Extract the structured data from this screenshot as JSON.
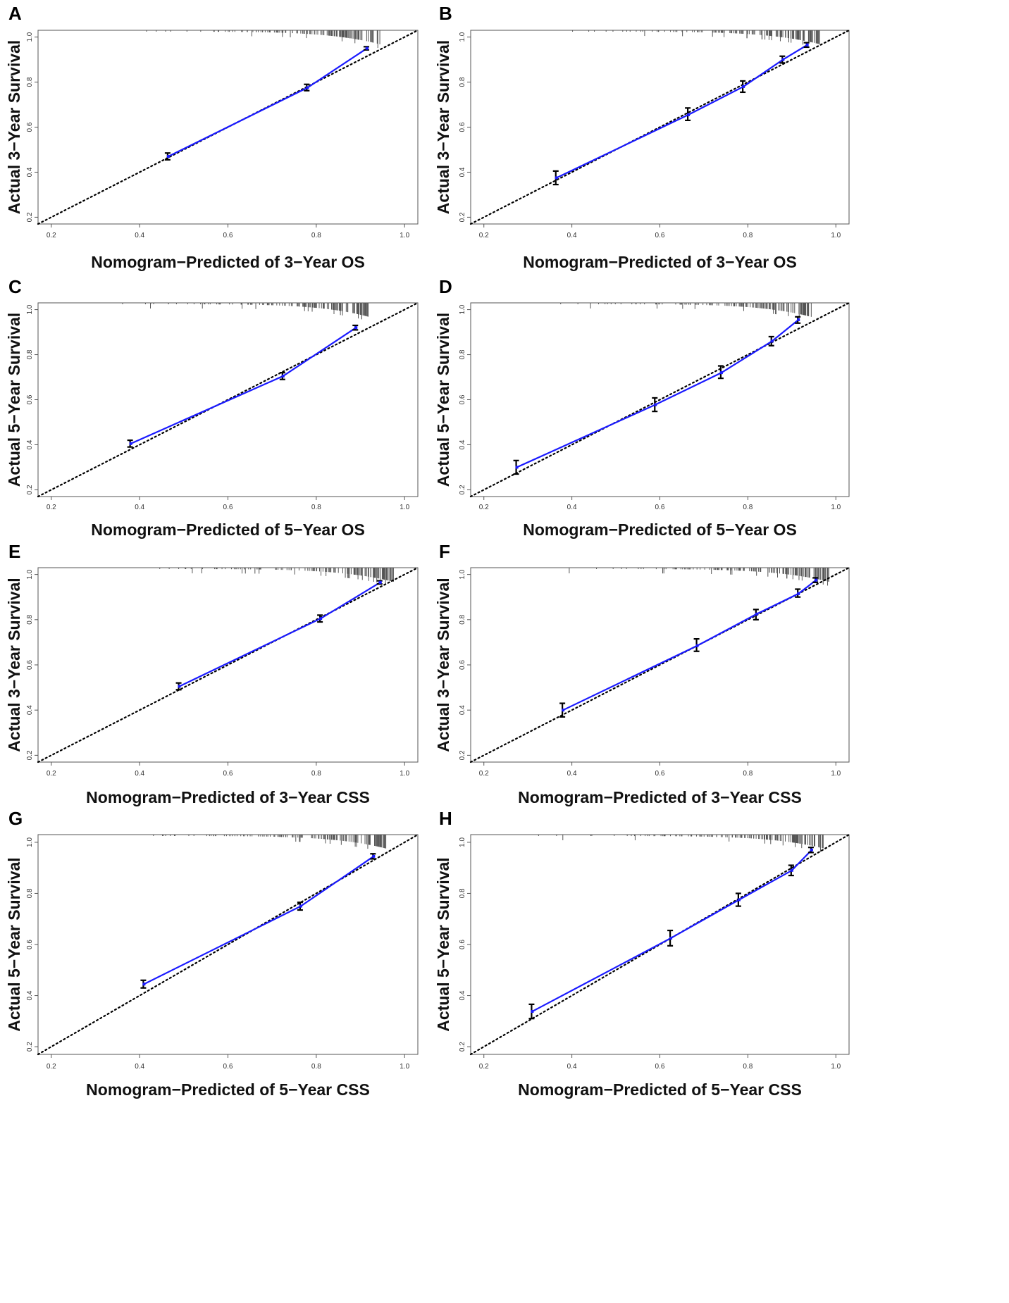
{
  "figure": {
    "panels_order": [
      "A",
      "B",
      "C",
      "D",
      "E",
      "F",
      "G",
      "H"
    ]
  },
  "colors": {
    "calibration_line": "#1a1aff",
    "calibration_point": "#1a1aff",
    "error_bar": "#000000",
    "ideal_line": "#000000",
    "rug": "#555555",
    "frame": "#555555"
  },
  "chart_data": [
    {
      "letter": "A",
      "type": "line",
      "xlabel": "Nomogram−Predicted of 3−Year OS",
      "ylabel": "Actual 3−Year Survival",
      "xlim": [
        0.17,
        1.03
      ],
      "ylim": [
        0.17,
        1.03
      ],
      "xticks": [
        "0.2",
        "0.4",
        "0.6",
        "0.8",
        "1.0"
      ],
      "yticks": [
        "0.2",
        "0.4",
        "0.6",
        "0.8",
        "1.0"
      ],
      "x": [
        0.465,
        0.78,
        0.915
      ],
      "y": [
        0.47,
        0.775,
        0.95
      ],
      "yerr_low": [
        0.455,
        0.762,
        0.943
      ],
      "yerr_high": [
        0.485,
        0.79,
        0.957
      ]
    },
    {
      "letter": "B",
      "type": "line",
      "xlabel": "Nomogram−Predicted of 3−Year OS",
      "ylabel": "Actual 3−Year Survival",
      "xlim": [
        0.17,
        1.03
      ],
      "ylim": [
        0.17,
        1.03
      ],
      "xticks": [
        "0.2",
        "0.4",
        "0.6",
        "0.8",
        "1.0"
      ],
      "yticks": [
        "0.2",
        "0.4",
        "0.6",
        "0.8",
        "1.0"
      ],
      "x": [
        0.365,
        0.665,
        0.79,
        0.88,
        0.935
      ],
      "y": [
        0.375,
        0.655,
        0.78,
        0.9,
        0.965
      ],
      "yerr_low": [
        0.345,
        0.63,
        0.755,
        0.885,
        0.955
      ],
      "yerr_high": [
        0.405,
        0.685,
        0.805,
        0.915,
        0.975
      ]
    },
    {
      "letter": "C",
      "type": "line",
      "xlabel": "Nomogram−Predicted of 5−Year OS",
      "ylabel": "Actual 5−Year Survival",
      "xlim": [
        0.17,
        1.03
      ],
      "ylim": [
        0.17,
        1.03
      ],
      "xticks": [
        "0.2",
        "0.4",
        "0.6",
        "0.8",
        "1.0"
      ],
      "yticks": [
        "0.2",
        "0.4",
        "0.6",
        "0.8",
        "1.0"
      ],
      "x": [
        0.38,
        0.725,
        0.89
      ],
      "y": [
        0.405,
        0.705,
        0.92
      ],
      "yerr_low": [
        0.39,
        0.69,
        0.91
      ],
      "yerr_high": [
        0.42,
        0.72,
        0.93
      ]
    },
    {
      "letter": "D",
      "type": "line",
      "xlabel": "Nomogram−Predicted of 5−Year OS",
      "ylabel": "Actual 5−Year Survival",
      "xlim": [
        0.17,
        1.03
      ],
      "ylim": [
        0.17,
        1.03
      ],
      "xticks": [
        "0.2",
        "0.4",
        "0.6",
        "0.8",
        "1.0"
      ],
      "yticks": [
        "0.2",
        "0.4",
        "0.6",
        "0.8",
        "1.0"
      ],
      "x": [
        0.275,
        0.59,
        0.74,
        0.855,
        0.915
      ],
      "y": [
        0.3,
        0.578,
        0.72,
        0.86,
        0.955
      ],
      "yerr_low": [
        0.27,
        0.548,
        0.695,
        0.84,
        0.94
      ],
      "yerr_high": [
        0.33,
        0.608,
        0.75,
        0.88,
        0.968
      ]
    },
    {
      "letter": "E",
      "type": "line",
      "xlabel": "Nomogram−Predicted of 3−Year CSS",
      "ylabel": "Actual 3−Year Survival",
      "xlim": [
        0.17,
        1.03
      ],
      "ylim": [
        0.17,
        1.03
      ],
      "xticks": [
        "0.2",
        "0.4",
        "0.6",
        "0.8",
        "1.0"
      ],
      "yticks": [
        "0.2",
        "0.4",
        "0.6",
        "0.8",
        "1.0"
      ],
      "x": [
        0.49,
        0.81,
        0.945
      ],
      "y": [
        0.505,
        0.805,
        0.965
      ],
      "yerr_low": [
        0.49,
        0.79,
        0.958
      ],
      "yerr_high": [
        0.52,
        0.82,
        0.972
      ]
    },
    {
      "letter": "F",
      "type": "line",
      "xlabel": "Nomogram−Predicted of 3−Year CSS",
      "ylabel": "Actual 3−Year Survival",
      "xlim": [
        0.17,
        1.03
      ],
      "ylim": [
        0.17,
        1.03
      ],
      "xticks": [
        "0.2",
        "0.4",
        "0.6",
        "0.8",
        "1.0"
      ],
      "yticks": [
        "0.2",
        "0.4",
        "0.6",
        "0.8",
        "1.0"
      ],
      "x": [
        0.38,
        0.685,
        0.82,
        0.915,
        0.955
      ],
      "y": [
        0.4,
        0.685,
        0.825,
        0.915,
        0.975
      ],
      "yerr_low": [
        0.37,
        0.66,
        0.8,
        0.9,
        0.965
      ],
      "yerr_high": [
        0.43,
        0.715,
        0.845,
        0.935,
        0.985
      ]
    },
    {
      "letter": "G",
      "type": "line",
      "xlabel": "Nomogram−Predicted of 5−Year CSS",
      "ylabel": "Actual 5−Year Survival",
      "xlim": [
        0.17,
        1.03
      ],
      "ylim": [
        0.17,
        1.03
      ],
      "xticks": [
        "0.2",
        "0.4",
        "0.6",
        "0.8",
        "1.0"
      ],
      "yticks": [
        "0.2",
        "0.4",
        "0.6",
        "0.8",
        "1.0"
      ],
      "x": [
        0.41,
        0.765,
        0.93
      ],
      "y": [
        0.445,
        0.75,
        0.945
      ],
      "yerr_low": [
        0.43,
        0.735,
        0.935
      ],
      "yerr_high": [
        0.46,
        0.765,
        0.955
      ]
    },
    {
      "letter": "H",
      "type": "line",
      "xlabel": "Nomogram−Predicted of 5−Year CSS",
      "ylabel": "Actual 5−Year Survival",
      "xlim": [
        0.17,
        1.03
      ],
      "ylim": [
        0.17,
        1.03
      ],
      "xticks": [
        "0.2",
        "0.4",
        "0.6",
        "0.8",
        "1.0"
      ],
      "yticks": [
        "0.2",
        "0.4",
        "0.6",
        "0.8",
        "1.0"
      ],
      "x": [
        0.31,
        0.625,
        0.78,
        0.9,
        0.945
      ],
      "y": [
        0.338,
        0.625,
        0.775,
        0.89,
        0.97
      ],
      "yerr_low": [
        0.31,
        0.595,
        0.75,
        0.87,
        0.96
      ],
      "yerr_high": [
        0.366,
        0.655,
        0.8,
        0.91,
        0.98
      ]
    }
  ]
}
